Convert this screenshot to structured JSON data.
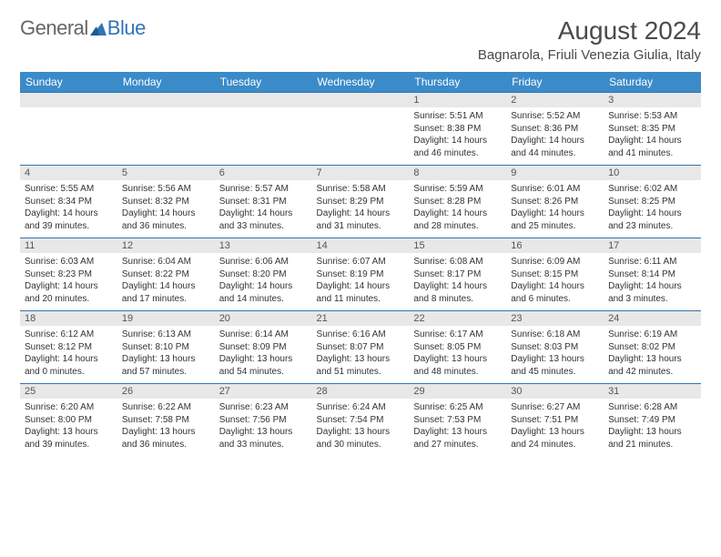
{
  "logo": {
    "text_general": "General",
    "text_blue": "Blue"
  },
  "title": "August 2024",
  "location": "Bagnarola, Friuli Venezia Giulia, Italy",
  "colors": {
    "header_blue": "#3b8bc9",
    "row_divider": "#2f75b5",
    "daynum_bg": "#e8e8e8",
    "text": "#333333",
    "logo_gray": "#666666",
    "logo_blue": "#2f75b5",
    "background": "#ffffff"
  },
  "typography": {
    "title_fontsize": 28,
    "location_fontsize": 15,
    "weekday_fontsize": 12,
    "daynum_fontsize": 11,
    "body_fontsize": 10
  },
  "weekdays": [
    "Sunday",
    "Monday",
    "Tuesday",
    "Wednesday",
    "Thursday",
    "Friday",
    "Saturday"
  ],
  "weeks": [
    [
      null,
      null,
      null,
      null,
      {
        "n": "1",
        "sunrise": "5:51 AM",
        "sunset": "8:38 PM",
        "daylight": "14 hours and 46 minutes."
      },
      {
        "n": "2",
        "sunrise": "5:52 AM",
        "sunset": "8:36 PM",
        "daylight": "14 hours and 44 minutes."
      },
      {
        "n": "3",
        "sunrise": "5:53 AM",
        "sunset": "8:35 PM",
        "daylight": "14 hours and 41 minutes."
      }
    ],
    [
      {
        "n": "4",
        "sunrise": "5:55 AM",
        "sunset": "8:34 PM",
        "daylight": "14 hours and 39 minutes."
      },
      {
        "n": "5",
        "sunrise": "5:56 AM",
        "sunset": "8:32 PM",
        "daylight": "14 hours and 36 minutes."
      },
      {
        "n": "6",
        "sunrise": "5:57 AM",
        "sunset": "8:31 PM",
        "daylight": "14 hours and 33 minutes."
      },
      {
        "n": "7",
        "sunrise": "5:58 AM",
        "sunset": "8:29 PM",
        "daylight": "14 hours and 31 minutes."
      },
      {
        "n": "8",
        "sunrise": "5:59 AM",
        "sunset": "8:28 PM",
        "daylight": "14 hours and 28 minutes."
      },
      {
        "n": "9",
        "sunrise": "6:01 AM",
        "sunset": "8:26 PM",
        "daylight": "14 hours and 25 minutes."
      },
      {
        "n": "10",
        "sunrise": "6:02 AM",
        "sunset": "8:25 PM",
        "daylight": "14 hours and 23 minutes."
      }
    ],
    [
      {
        "n": "11",
        "sunrise": "6:03 AM",
        "sunset": "8:23 PM",
        "daylight": "14 hours and 20 minutes."
      },
      {
        "n": "12",
        "sunrise": "6:04 AM",
        "sunset": "8:22 PM",
        "daylight": "14 hours and 17 minutes."
      },
      {
        "n": "13",
        "sunrise": "6:06 AM",
        "sunset": "8:20 PM",
        "daylight": "14 hours and 14 minutes."
      },
      {
        "n": "14",
        "sunrise": "6:07 AM",
        "sunset": "8:19 PM",
        "daylight": "14 hours and 11 minutes."
      },
      {
        "n": "15",
        "sunrise": "6:08 AM",
        "sunset": "8:17 PM",
        "daylight": "14 hours and 8 minutes."
      },
      {
        "n": "16",
        "sunrise": "6:09 AM",
        "sunset": "8:15 PM",
        "daylight": "14 hours and 6 minutes."
      },
      {
        "n": "17",
        "sunrise": "6:11 AM",
        "sunset": "8:14 PM",
        "daylight": "14 hours and 3 minutes."
      }
    ],
    [
      {
        "n": "18",
        "sunrise": "6:12 AM",
        "sunset": "8:12 PM",
        "daylight": "14 hours and 0 minutes."
      },
      {
        "n": "19",
        "sunrise": "6:13 AM",
        "sunset": "8:10 PM",
        "daylight": "13 hours and 57 minutes."
      },
      {
        "n": "20",
        "sunrise": "6:14 AM",
        "sunset": "8:09 PM",
        "daylight": "13 hours and 54 minutes."
      },
      {
        "n": "21",
        "sunrise": "6:16 AM",
        "sunset": "8:07 PM",
        "daylight": "13 hours and 51 minutes."
      },
      {
        "n": "22",
        "sunrise": "6:17 AM",
        "sunset": "8:05 PM",
        "daylight": "13 hours and 48 minutes."
      },
      {
        "n": "23",
        "sunrise": "6:18 AM",
        "sunset": "8:03 PM",
        "daylight": "13 hours and 45 minutes."
      },
      {
        "n": "24",
        "sunrise": "6:19 AM",
        "sunset": "8:02 PM",
        "daylight": "13 hours and 42 minutes."
      }
    ],
    [
      {
        "n": "25",
        "sunrise": "6:20 AM",
        "sunset": "8:00 PM",
        "daylight": "13 hours and 39 minutes."
      },
      {
        "n": "26",
        "sunrise": "6:22 AM",
        "sunset": "7:58 PM",
        "daylight": "13 hours and 36 minutes."
      },
      {
        "n": "27",
        "sunrise": "6:23 AM",
        "sunset": "7:56 PM",
        "daylight": "13 hours and 33 minutes."
      },
      {
        "n": "28",
        "sunrise": "6:24 AM",
        "sunset": "7:54 PM",
        "daylight": "13 hours and 30 minutes."
      },
      {
        "n": "29",
        "sunrise": "6:25 AM",
        "sunset": "7:53 PM",
        "daylight": "13 hours and 27 minutes."
      },
      {
        "n": "30",
        "sunrise": "6:27 AM",
        "sunset": "7:51 PM",
        "daylight": "13 hours and 24 minutes."
      },
      {
        "n": "31",
        "sunrise": "6:28 AM",
        "sunset": "7:49 PM",
        "daylight": "13 hours and 21 minutes."
      }
    ]
  ],
  "labels": {
    "sunrise": "Sunrise:",
    "sunset": "Sunset:",
    "daylight": "Daylight:"
  }
}
